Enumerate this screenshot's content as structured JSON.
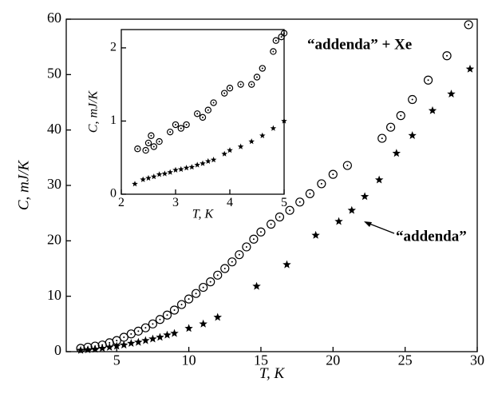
{
  "chart_data": [
    {
      "type": "scatter",
      "xlabel": "T, K",
      "ylabel": "C, mJ/K",
      "xlim": [
        1.5,
        30
      ],
      "xticks": [
        5,
        10,
        15,
        20,
        25,
        30
      ],
      "ylim": [
        0,
        60
      ],
      "yticks": [
        0,
        10,
        20,
        30,
        40,
        50,
        60
      ],
      "annotations": [
        "“addenda” + Xe",
        "“addenda”"
      ],
      "series": [
        {
          "name": "“addenda” + Xe",
          "marker": "circle-dot",
          "color": "#000000",
          "x": [
            2.5,
            3,
            3.5,
            4,
            4.5,
            5,
            5.5,
            6,
            6.5,
            7,
            7.5,
            8,
            8.5,
            9,
            9.5,
            10,
            10.5,
            11,
            11.5,
            12,
            12.5,
            13,
            13.5,
            14,
            14.5,
            15,
            15.7,
            16.3,
            17,
            17.7,
            18.4,
            19.2,
            20,
            21,
            23.4,
            24,
            24.7,
            25.5,
            26.6,
            27.9,
            29.4
          ],
          "values": [
            0.6,
            0.8,
            1,
            1.2,
            1.6,
            2,
            2.6,
            3.2,
            3.7,
            4.3,
            5,
            5.8,
            6.6,
            7.5,
            8.5,
            9.5,
            10.5,
            11.6,
            12.6,
            13.8,
            15,
            16.2,
            17.5,
            18.9,
            20.3,
            21.6,
            23,
            24.3,
            25.5,
            27,
            28.5,
            30.3,
            32,
            33.6,
            38.5,
            40.5,
            42.6,
            45.5,
            49,
            53.4,
            59
          ]
        },
        {
          "name": "“addenda”",
          "marker": "star",
          "color": "#000000",
          "x": [
            2.5,
            3,
            3.5,
            4,
            4.5,
            5,
            5.5,
            6,
            6.5,
            7,
            7.5,
            8,
            8.5,
            9,
            10,
            11,
            12,
            14.7,
            16.8,
            18.8,
            20.4,
            21.3,
            22.2,
            23.2,
            24.4,
            25.5,
            26.9,
            28.2,
            29.5
          ],
          "values": [
            0.25,
            0.35,
            0.45,
            0.6,
            0.8,
            1,
            1.2,
            1.5,
            1.7,
            2,
            2.3,
            2.6,
            3,
            3.3,
            4.2,
            5,
            6.2,
            11.8,
            15.7,
            21,
            23.5,
            25.5,
            28,
            31,
            35.8,
            39,
            43.5,
            46.5,
            51
          ]
        }
      ]
    },
    {
      "type": "scatter",
      "xlabel": "T, K",
      "ylabel": "C, mJ/K",
      "xlim": [
        2,
        5
      ],
      "xticks": [
        2,
        3,
        4,
        5
      ],
      "ylim": [
        0,
        2.25
      ],
      "yticks": [
        0,
        1,
        2
      ],
      "series": [
        {
          "name": "“addenda” + Xe",
          "marker": "circle-dot",
          "color": "#000000",
          "x": [
            2.3,
            2.45,
            2.5,
            2.55,
            2.6,
            2.7,
            2.9,
            3.0,
            3.1,
            3.2,
            3.4,
            3.5,
            3.6,
            3.7,
            3.9,
            4.0,
            4.2,
            4.4,
            4.5,
            4.6,
            4.8,
            4.85,
            4.95,
            5.0
          ],
          "values": [
            0.62,
            0.6,
            0.7,
            0.8,
            0.65,
            0.72,
            0.85,
            0.95,
            0.9,
            0.95,
            1.1,
            1.05,
            1.15,
            1.25,
            1.38,
            1.45,
            1.5,
            1.5,
            1.6,
            1.72,
            1.95,
            2.1,
            2.15,
            2.2
          ]
        },
        {
          "name": "“addenda”",
          "marker": "star",
          "color": "#000000",
          "x": [
            2.25,
            2.4,
            2.5,
            2.6,
            2.7,
            2.8,
            2.9,
            3.0,
            3.1,
            3.2,
            3.3,
            3.4,
            3.5,
            3.6,
            3.7,
            3.9,
            4.0,
            4.2,
            4.4,
            4.6,
            4.8,
            5.0
          ],
          "values": [
            0.14,
            0.2,
            0.22,
            0.24,
            0.27,
            0.28,
            0.3,
            0.33,
            0.34,
            0.36,
            0.37,
            0.4,
            0.42,
            0.45,
            0.47,
            0.55,
            0.6,
            0.65,
            0.72,
            0.8,
            0.9,
            1.0
          ]
        }
      ]
    }
  ]
}
